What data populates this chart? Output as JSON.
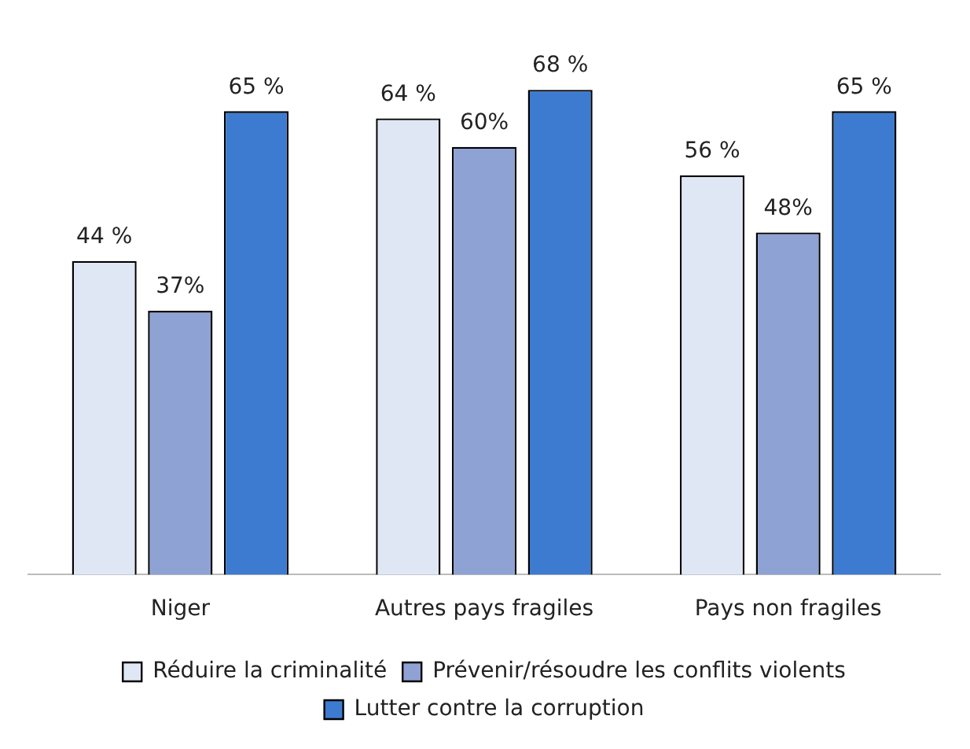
{
  "chart_data": {
    "type": "bar",
    "categories": [
      "Niger",
      "Autres pays fragiles",
      "Pays non fragiles"
    ],
    "series": [
      {
        "name": "Réduire la criminalité",
        "color": "#dfe7f5",
        "values": [
          44,
          64,
          56
        ],
        "value_labels": [
          "44 %",
          "64 %",
          "56 %"
        ]
      },
      {
        "name": "Prévenir/résoudre les conflits violents",
        "color": "#8fa2d4",
        "values": [
          37,
          60,
          48
        ],
        "value_labels": [
          "37%",
          "60%",
          "48%"
        ]
      },
      {
        "name": "Lutter contre la corruption",
        "color": "#3d7bd0",
        "values": [
          65,
          68,
          65
        ],
        "value_labels": [
          "65 %",
          "68 %",
          "65 %"
        ]
      }
    ],
    "legend": "bottom",
    "grid": false,
    "tick_labels": "x"
  }
}
